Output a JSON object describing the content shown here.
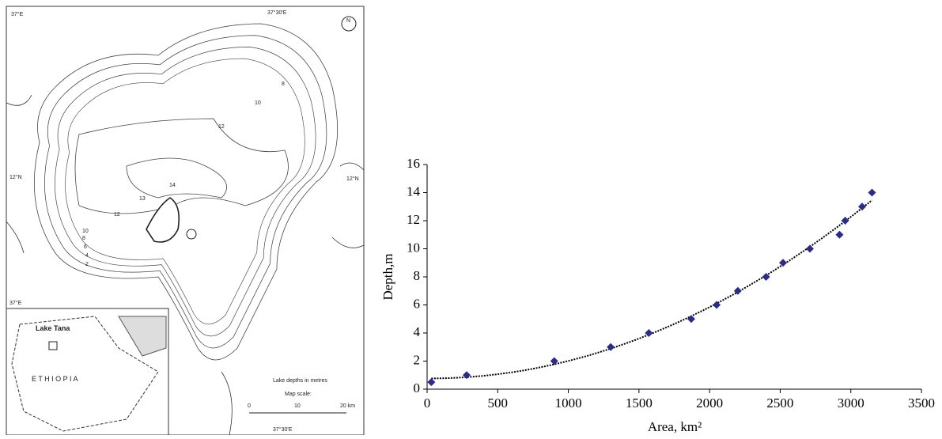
{
  "map": {
    "lon_top_left": "37°E",
    "lon_top_mid": "37°30'E",
    "lat_left": "12°N",
    "lat_right": "12°N",
    "lon_inset": "37°E",
    "north": "N",
    "contour_labels": [
      "2",
      "4",
      "6",
      "8",
      "10",
      "12",
      "13",
      "14",
      "10",
      "12",
      "8"
    ],
    "legend_title": "Lake depths in metres",
    "scale_title": "Map scale:",
    "scale_ticks": [
      "0",
      "10",
      "20 km"
    ],
    "lon_bottom": "37°30'E",
    "inset_lake": "Lake Tana",
    "inset_country": "E T H I O P I A"
  },
  "chart_data": {
    "type": "scatter",
    "x_label": "Area, km²",
    "y_label": "Depth,m",
    "series": [
      {
        "color": "#2b2b8c",
        "x": [
          30,
          280,
          900,
          1300,
          1570,
          1870,
          2050,
          2200,
          2400,
          2520,
          2710,
          2920,
          2960,
          3080,
          3150
        ],
        "values": [
          0.5,
          1,
          2,
          3,
          4,
          5,
          6,
          7,
          8,
          9,
          10,
          11,
          12,
          13,
          14
        ]
      }
    ],
    "trendline": true,
    "xlim": [
      0,
      3500
    ],
    "xticks": [
      0,
      500,
      1000,
      1500,
      2000,
      2500,
      3000,
      3500
    ],
    "ylim": [
      0,
      16
    ],
    "yticks": [
      0,
      2,
      4,
      6,
      8,
      10,
      12,
      14,
      16
    ]
  }
}
